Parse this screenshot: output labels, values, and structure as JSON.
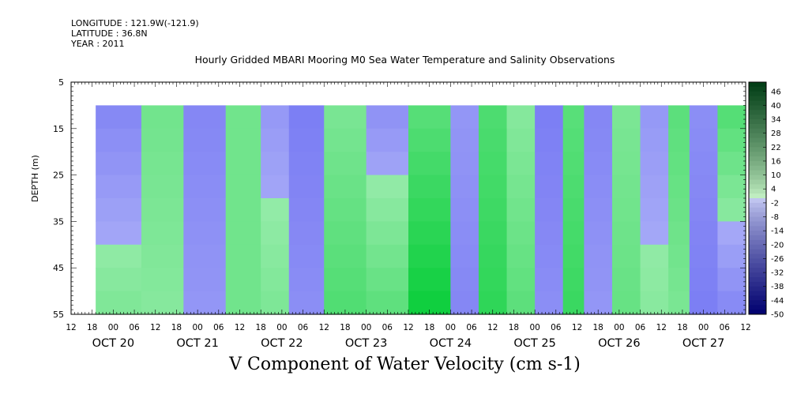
{
  "header": {
    "longitude": "LONGITUDE : 121.9W(-121.9)",
    "latitude": "LATITUDE : 36.8N",
    "year": "YEAR : 2011"
  },
  "chart_data": {
    "type": "heatmap",
    "title": "Hourly Gridded MBARI Mooring M0 Sea Water Temperature and Salinity Observations",
    "xlabel": "V Component of Water Velocity (cm s-1)",
    "ylabel": "DEPTH (m)",
    "y_ticks": [
      5,
      15,
      25,
      35,
      45,
      55
    ],
    "ylim": [
      55,
      5
    ],
    "data_depth_range": [
      10,
      55
    ],
    "x_hour_ticks": [
      "12",
      "18",
      "00",
      "06",
      "12",
      "18",
      "00",
      "06",
      "12",
      "18",
      "00",
      "06",
      "12",
      "18",
      "00",
      "06",
      "12",
      "18",
      "00",
      "06",
      "12",
      "18",
      "00",
      "06",
      "12",
      "18",
      "00",
      "06",
      "12",
      "18",
      "00",
      "06",
      "12"
    ],
    "x_day_labels": [
      "OCT 20",
      "OCT 21",
      "OCT 22",
      "OCT 23",
      "OCT 24",
      "OCT 25",
      "OCT 26",
      "OCT 27"
    ],
    "x_range_hours_from_oct20_12": [
      0,
      192
    ],
    "data_start_hour": 7,
    "colorbar": {
      "min": -50,
      "max": 50,
      "labels": [
        46,
        40,
        34,
        28,
        22,
        16,
        10,
        4,
        -2,
        -8,
        -14,
        -20,
        -26,
        -32,
        -38,
        -44,
        -50
      ],
      "negative_color": "#3a3aee",
      "positive_color": "#00cc33"
    },
    "velocity_columns": [
      {
        "hour_start": 7,
        "hour_end": 20,
        "value_top": -8,
        "value_bottom": 4
      },
      {
        "hour_start": 20,
        "hour_end": 32,
        "value_top": 6,
        "value_bottom": 2
      },
      {
        "hour_start": 32,
        "hour_end": 44,
        "value_top": -8,
        "value_bottom": -4
      },
      {
        "hour_start": 44,
        "hour_end": 54,
        "value_top": 6,
        "value_bottom": 6
      },
      {
        "hour_start": 54,
        "hour_end": 62,
        "value_top": -4,
        "value_bottom": 4
      },
      {
        "hour_start": 62,
        "hour_end": 72,
        "value_top": -10,
        "value_bottom": -6
      },
      {
        "hour_start": 72,
        "hour_end": 84,
        "value_top": 4,
        "value_bottom": 12
      },
      {
        "hour_start": 84,
        "hour_end": 96,
        "value_top": -6,
        "value_bottom": 10
      },
      {
        "hour_start": 96,
        "hour_end": 108,
        "value_top": 10,
        "value_bottom": 24
      },
      {
        "hour_start": 108,
        "hour_end": 116,
        "value_top": -4,
        "value_bottom": -8
      },
      {
        "hour_start": 116,
        "hour_end": 124,
        "value_top": 12,
        "value_bottom": 18
      },
      {
        "hour_start": 124,
        "hour_end": 132,
        "value_top": 2,
        "value_bottom": 10
      },
      {
        "hour_start": 132,
        "hour_end": 140,
        "value_top": -10,
        "value_bottom": -6
      },
      {
        "hour_start": 140,
        "hour_end": 146,
        "value_top": 10,
        "value_bottom": 16
      },
      {
        "hour_start": 146,
        "hour_end": 154,
        "value_top": -8,
        "value_bottom": -4
      },
      {
        "hour_start": 154,
        "hour_end": 162,
        "value_top": 4,
        "value_bottom": 8
      },
      {
        "hour_start": 162,
        "hour_end": 170,
        "value_top": -4,
        "value_bottom": 2
      },
      {
        "hour_start": 170,
        "hour_end": 176,
        "value_top": 10,
        "value_bottom": 4
      },
      {
        "hour_start": 176,
        "hour_end": 184,
        "value_top": -6,
        "value_bottom": -10
      },
      {
        "hour_start": 184,
        "hour_end": 192,
        "value_top": 12,
        "value_bottom": -8
      }
    ]
  }
}
